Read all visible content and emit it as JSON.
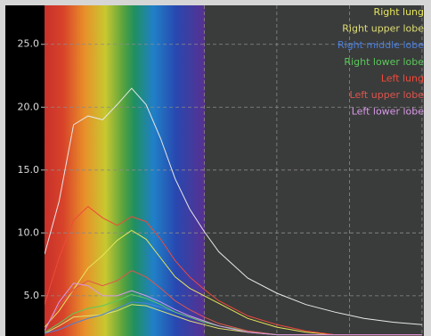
{
  "chart_data": {
    "type": "line",
    "x": [
      0,
      0.2,
      0.4,
      0.6,
      0.8,
      1.0,
      1.2,
      1.4,
      1.6,
      1.8,
      2.0,
      2.2,
      2.4,
      2.8,
      3.2,
      3.6,
      4.0,
      4.4,
      4.8,
      5.2
    ],
    "xlim": [
      0,
      5.25
    ],
    "xticks": [
      2.2,
      3.2,
      4.2,
      5.2
    ],
    "ylim": [
      1.8,
      28.1
    ],
    "yticks": [
      {
        "value": 5,
        "label": "5.0"
      },
      {
        "value": 10,
        "label": "10.0"
      },
      {
        "value": 15,
        "label": "15.0"
      },
      {
        "value": 20,
        "label": "20.0"
      },
      {
        "value": 25,
        "label": "25.0"
      }
    ],
    "grid": true,
    "legend": "upper right",
    "series": [
      {
        "color": "#e8e8e8",
        "values": [
          8.3,
          12.5,
          18.6,
          19.3,
          19.0,
          20.2,
          21.5,
          20.2,
          17.5,
          14.3,
          11.9,
          10.1,
          8.5,
          6.4,
          5.2,
          4.3,
          3.7,
          3.2,
          2.9,
          2.7
        ]
      },
      {
        "name": "Right lung",
        "color": "#e6e65a",
        "values": [
          2.5,
          3.8,
          5.5,
          7.2,
          8.2,
          9.4,
          10.2,
          9.5,
          8.0,
          6.5,
          5.6,
          5.0,
          4.4,
          3.2,
          2.5,
          2.1,
          1.9,
          1.9,
          1.9,
          1.9
        ]
      },
      {
        "name": "Right upper lobe",
        "color": "#dede74",
        "values": [
          2.0,
          2.6,
          3.3,
          3.4,
          3.5,
          3.8,
          4.3,
          4.2,
          3.8,
          3.4,
          3.0,
          2.7,
          2.4,
          2.1,
          1.9,
          1.9,
          1.9,
          1.9,
          1.9,
          1.9
        ]
      },
      {
        "name": "Right middle lobe",
        "color": "#4c80dc",
        "values": [
          2.0,
          2.3,
          2.8,
          3.2,
          3.5,
          4.0,
          4.5,
          4.4,
          4.1,
          3.7,
          3.3,
          2.9,
          2.6,
          2.2,
          1.9,
          1.9,
          1.9,
          1.9,
          1.9,
          1.9
        ]
      },
      {
        "name": "Right lower lobe",
        "color": "#5cc85c",
        "values": [
          2.1,
          2.8,
          3.6,
          4.0,
          4.2,
          4.6,
          5.1,
          4.8,
          4.3,
          3.7,
          3.3,
          2.9,
          2.6,
          2.2,
          1.9,
          1.9,
          1.9,
          1.9,
          1.9,
          1.9
        ]
      },
      {
        "name": "Left lung",
        "color": "#f04a3a",
        "values": [
          4.3,
          8.0,
          11.0,
          12.1,
          11.2,
          10.6,
          11.3,
          10.9,
          9.5,
          7.8,
          6.5,
          5.5,
          4.6,
          3.4,
          2.7,
          2.2,
          1.9,
          1.9,
          1.9,
          1.9
        ]
      },
      {
        "name": "Left upper lobe",
        "color": "#e0544c",
        "values": [
          2.3,
          4.2,
          5.5,
          6.2,
          5.8,
          6.2,
          7.0,
          6.5,
          5.6,
          4.6,
          3.9,
          3.3,
          2.8,
          2.2,
          1.9,
          1.9,
          1.9,
          1.9,
          1.9,
          1.9
        ]
      },
      {
        "name": "Left lower lobe",
        "color": "#d89ae8",
        "values": [
          2.2,
          4.5,
          6.0,
          5.8,
          5.0,
          5.0,
          5.4,
          5.0,
          4.5,
          3.9,
          3.4,
          3.0,
          2.6,
          2.1,
          1.9,
          1.9,
          1.9,
          1.9,
          1.9,
          1.9
        ]
      }
    ]
  }
}
